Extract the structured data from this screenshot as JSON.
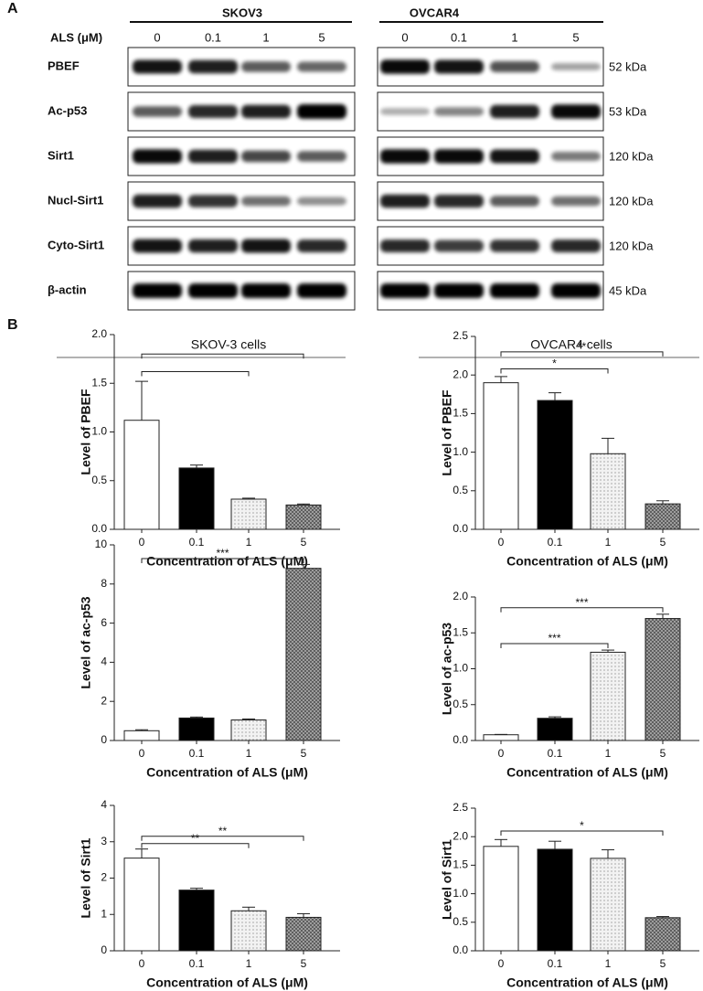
{
  "panel_a": {
    "label": "A",
    "dose_label": "ALS (μM)",
    "groups": [
      {
        "name": "SKOV3",
        "lanes": [
          "0",
          "0.1",
          "1",
          "5"
        ]
      },
      {
        "name": "OVCAR4",
        "lanes": [
          "0",
          "0.1",
          "1",
          "5"
        ]
      }
    ],
    "rows": [
      {
        "label": "PBEF",
        "size": "52 kDa"
      },
      {
        "label": "Ac-p53",
        "size": "53 kDa"
      },
      {
        "label": "Sirt1",
        "size": "120 kDa"
      },
      {
        "label": "Nucl-Sirt1",
        "size": "120 kDa"
      },
      {
        "label": "Cyto-Sirt1",
        "size": "120 kDa"
      },
      {
        "label": "β-actin",
        "size": "45 kDa"
      }
    ]
  },
  "panel_b": {
    "label": "B",
    "columns": [
      "SKOV-3 cells",
      "OVCAR4 cells"
    ]
  },
  "chart_data": [
    {
      "type": "bar",
      "ylabel": "Level of PBEF",
      "xlabel": "Concentration of ALS (μM)",
      "categories": [
        "0",
        "0.1",
        "1",
        "5"
      ],
      "values": [
        1.12,
        0.63,
        0.31,
        0.25
      ],
      "errors": [
        0.4,
        0.03,
        0.01,
        0.01
      ],
      "colors": [
        "#ffffff",
        "#000000",
        "#eeeeee",
        "#999999"
      ],
      "ylim": [
        0,
        2
      ],
      "yticks": [
        {
          "value": 0,
          "label": "0.0"
        },
        0.5,
        {
          "value": 1,
          "label": "1.0"
        },
        1.5,
        {
          "value": 2,
          "label": "2.0"
        }
      ],
      "brackets": [
        {
          "from": 0,
          "to": 2,
          "y": 1.62
        },
        {
          "from": 0,
          "to": 3,
          "y": 1.8
        }
      ]
    },
    {
      "type": "bar",
      "ylabel": "Level of PBEF",
      "xlabel": "Concentration of ALS (μM)",
      "categories": [
        "0",
        "0.1",
        "1",
        "5"
      ],
      "values": [
        1.9,
        1.67,
        0.98,
        0.33
      ],
      "errors": [
        0.08,
        0.1,
        0.2,
        0.04
      ],
      "colors": [
        "#ffffff",
        "#000000",
        "#eeeeee",
        "#999999"
      ],
      "ylim": [
        0,
        2.5
      ],
      "yticks": [
        {
          "value": 0,
          "label": "0.0"
        },
        0.5,
        {
          "value": 1,
          "label": "1.0"
        },
        1.5,
        {
          "value": 2,
          "label": "2.0"
        },
        2.5
      ],
      "brackets": [
        {
          "from": 0,
          "to": 2,
          "y": 2.08,
          "label": "*"
        },
        {
          "from": 0,
          "to": 3,
          "y": 2.3,
          "label": "**"
        }
      ]
    },
    {
      "type": "bar",
      "ylabel": "Level of ac-p53",
      "xlabel": "Concentration of ALS (μM)",
      "categories": [
        "0",
        "0.1",
        "1",
        "5"
      ],
      "values": [
        0.5,
        1.15,
        1.05,
        8.8
      ],
      "errors": [
        0.05,
        0.05,
        0.05,
        0.2
      ],
      "colors": [
        "#ffffff",
        "#000000",
        "#eeeeee",
        "#999999"
      ],
      "ylim": [
        0,
        10
      ],
      "yticks": [
        0,
        2,
        4,
        6,
        8,
        10
      ],
      "brackets": [
        {
          "from": 0,
          "to": 3,
          "y": 9.3,
          "label": "***"
        }
      ]
    },
    {
      "type": "bar",
      "ylabel": "Level of ac-p53",
      "xlabel": "Concentration of ALS (μM)",
      "categories": [
        "0",
        "0.1",
        "1",
        "5"
      ],
      "values": [
        0.08,
        0.31,
        1.23,
        1.7
      ],
      "errors": [
        0.005,
        0.02,
        0.03,
        0.06
      ],
      "colors": [
        "#ffffff",
        "#000000",
        "#eeeeee",
        "#999999"
      ],
      "ylim": [
        0,
        2
      ],
      "yticks": [
        {
          "value": 0,
          "label": "0.0"
        },
        0.5,
        {
          "value": 1,
          "label": "1.0"
        },
        1.5,
        {
          "value": 2,
          "label": "2.0"
        }
      ],
      "brackets": [
        {
          "from": 0,
          "to": 2,
          "y": 1.35,
          "label": "***"
        },
        {
          "from": 0,
          "to": 3,
          "y": 1.85,
          "label": "***"
        }
      ]
    },
    {
      "type": "bar",
      "ylabel": "Level of Sirt1",
      "xlabel": "Concentration of ALS (μM)",
      "categories": [
        "0",
        "0.1",
        "1",
        "5"
      ],
      "values": [
        2.55,
        1.67,
        1.1,
        0.92
      ],
      "errors": [
        0.25,
        0.05,
        0.1,
        0.1
      ],
      "colors": [
        "#ffffff",
        "#000000",
        "#eeeeee",
        "#999999"
      ],
      "ylim": [
        0,
        4
      ],
      "yticks": [
        0,
        1,
        2,
        3,
        4
      ],
      "brackets": [
        {
          "from": 0,
          "to": 2,
          "y": 2.95,
          "label": "**"
        },
        {
          "from": 0,
          "to": 3,
          "y": 3.15,
          "label": "**"
        }
      ]
    },
    {
      "type": "bar",
      "ylabel": "Level of Sirt1",
      "xlabel": "Concentration of ALS (μM)",
      "categories": [
        "0",
        "0.1",
        "1",
        "5"
      ],
      "values": [
        1.83,
        1.78,
        1.62,
        0.58
      ],
      "errors": [
        0.12,
        0.14,
        0.15,
        0.02
      ],
      "colors": [
        "#ffffff",
        "#000000",
        "#eeeeee",
        "#999999"
      ],
      "ylim": [
        0,
        2.5
      ],
      "yticks": [
        {
          "value": 0,
          "label": "0.0"
        },
        0.5,
        {
          "value": 1,
          "label": "1.0"
        },
        1.5,
        {
          "value": 2,
          "label": "2.0"
        },
        2.5
      ],
      "brackets": [
        {
          "from": 0,
          "to": 3,
          "y": 2.1,
          "label": "*"
        }
      ]
    }
  ]
}
